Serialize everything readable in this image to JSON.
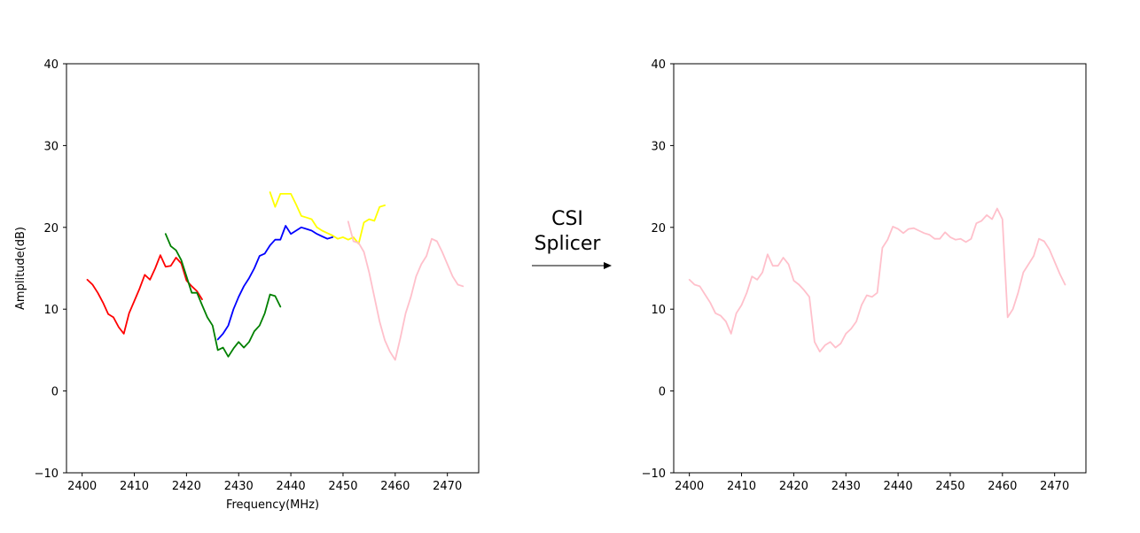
{
  "annotation": {
    "line1": "CSI",
    "line2": "Splicer"
  },
  "chart_data": [
    {
      "type": "line",
      "xlabel": "Frequency(MHz)",
      "ylabel": "Amplitude(dB)",
      "xlim": [
        2397,
        2476
      ],
      "ylim": [
        -10,
        40
      ],
      "xticks": [
        2400,
        2410,
        2420,
        2430,
        2440,
        2450,
        2460,
        2470
      ],
      "yticks": [
        -10,
        0,
        10,
        20,
        30,
        40
      ],
      "series": [
        {
          "color": "#ff0000",
          "x": [
            2401,
            2402,
            2403,
            2404,
            2405,
            2406,
            2407,
            2408,
            2409,
            2410,
            2411,
            2412,
            2413,
            2414,
            2415,
            2416,
            2417,
            2418,
            2419,
            2420,
            2421,
            2422,
            2423
          ],
          "y": [
            13.6,
            13.0,
            12.0,
            10.8,
            9.4,
            9.0,
            7.8,
            7.0,
            9.5,
            11.0,
            12.5,
            14.2,
            13.6,
            15.0,
            16.6,
            15.2,
            15.3,
            16.3,
            15.6,
            13.5,
            12.8,
            12.2,
            11.2
          ]
        },
        {
          "color": "#008000",
          "x": [
            2416,
            2417,
            2418,
            2419,
            2420,
            2421,
            2422,
            2423,
            2424,
            2425,
            2426,
            2427,
            2428,
            2429,
            2430,
            2431,
            2432,
            2433,
            2434,
            2435,
            2436,
            2437,
            2438
          ],
          "y": [
            19.2,
            17.7,
            17.2,
            16.0,
            14.0,
            12.0,
            12.0,
            10.5,
            9.0,
            8.0,
            5.0,
            5.3,
            4.2,
            5.2,
            6.0,
            5.3,
            6.0,
            7.3,
            8.0,
            9.5,
            11.8,
            11.6,
            10.3
          ]
        },
        {
          "color": "#0000ff",
          "x": [
            2426,
            2427,
            2428,
            2429,
            2430,
            2431,
            2432,
            2433,
            2434,
            2435,
            2436,
            2437,
            2438,
            2439,
            2440,
            2441,
            2442,
            2443,
            2444,
            2445,
            2446,
            2447,
            2448
          ],
          "y": [
            6.3,
            7.0,
            8.0,
            10.0,
            11.5,
            12.8,
            13.8,
            15.0,
            16.5,
            16.8,
            17.8,
            18.5,
            18.5,
            20.2,
            19.2,
            19.6,
            20.0,
            19.8,
            19.6,
            19.2,
            18.9,
            18.6,
            18.8
          ]
        },
        {
          "color": "#ffff00",
          "x": [
            2436,
            2437,
            2438,
            2439,
            2440,
            2441,
            2442,
            2443,
            2444,
            2445,
            2446,
            2447,
            2448,
            2449,
            2450,
            2451,
            2452,
            2453,
            2454,
            2455,
            2456,
            2457,
            2458
          ],
          "y": [
            24.3,
            22.5,
            24.1,
            24.1,
            24.1,
            22.8,
            21.4,
            21.2,
            21.0,
            20.0,
            19.6,
            19.3,
            19.0,
            18.6,
            18.8,
            18.5,
            18.8,
            18.0,
            20.6,
            21.0,
            20.8,
            22.5,
            22.7
          ]
        },
        {
          "color": "#ffc0cb",
          "x": [
            2451,
            2452,
            2453,
            2454,
            2455,
            2456,
            2457,
            2458,
            2459,
            2460,
            2461,
            2462,
            2463,
            2464,
            2465,
            2466,
            2467,
            2468,
            2469,
            2470,
            2471,
            2472,
            2473
          ],
          "y": [
            20.7,
            18.3,
            18.1,
            17.0,
            14.5,
            11.5,
            8.5,
            6.2,
            4.8,
            3.8,
            6.5,
            9.5,
            11.5,
            14.0,
            15.5,
            16.5,
            18.6,
            18.3,
            17.0,
            15.5,
            14.0,
            13.0,
            12.8
          ]
        }
      ]
    },
    {
      "type": "line",
      "xlabel": "",
      "ylabel": "",
      "xlim": [
        2397,
        2476
      ],
      "ylim": [
        -10,
        40
      ],
      "xticks": [
        2400,
        2410,
        2420,
        2430,
        2440,
        2450,
        2460,
        2470
      ],
      "yticks": [
        -10,
        0,
        10,
        20,
        30,
        40
      ],
      "series": [
        {
          "color": "#ffc0cb",
          "x": [
            2400,
            2401,
            2402,
            2403,
            2404,
            2405,
            2406,
            2407,
            2408,
            2409,
            2410,
            2411,
            2412,
            2413,
            2414,
            2415,
            2416,
            2417,
            2418,
            2419,
            2420,
            2421,
            2422,
            2423,
            2424,
            2425,
            2426,
            2427,
            2428,
            2429,
            2430,
            2431,
            2432,
            2433,
            2434,
            2435,
            2436,
            2437,
            2438,
            2439,
            2440,
            2441,
            2442,
            2443,
            2444,
            2445,
            2446,
            2447,
            2448,
            2449,
            2450,
            2451,
            2452,
            2453,
            2454,
            2455,
            2456,
            2457,
            2458,
            2459,
            2460,
            2461,
            2462,
            2463,
            2464,
            2465,
            2466,
            2467,
            2468,
            2469,
            2470,
            2471,
            2472
          ],
          "y": [
            13.6,
            13.0,
            12.8,
            11.8,
            10.8,
            9.5,
            9.2,
            8.5,
            7.0,
            9.5,
            10.5,
            12.0,
            14.0,
            13.6,
            14.5,
            16.7,
            15.3,
            15.3,
            16.3,
            15.5,
            13.5,
            13.0,
            12.3,
            11.5,
            6.0,
            4.8,
            5.6,
            6.0,
            5.3,
            5.8,
            7.0,
            7.6,
            8.5,
            10.5,
            11.7,
            11.5,
            12.0,
            17.5,
            18.5,
            20.1,
            19.8,
            19.3,
            19.8,
            19.9,
            19.6,
            19.3,
            19.1,
            18.6,
            18.6,
            19.4,
            18.8,
            18.5,
            18.6,
            18.2,
            18.6,
            20.5,
            20.8,
            21.5,
            21.0,
            22.3,
            21.0,
            9.0,
            10.0,
            12.0,
            14.5,
            15.5,
            16.5,
            18.6,
            18.3,
            17.3,
            15.8,
            14.3,
            13.0
          ]
        }
      ]
    }
  ]
}
